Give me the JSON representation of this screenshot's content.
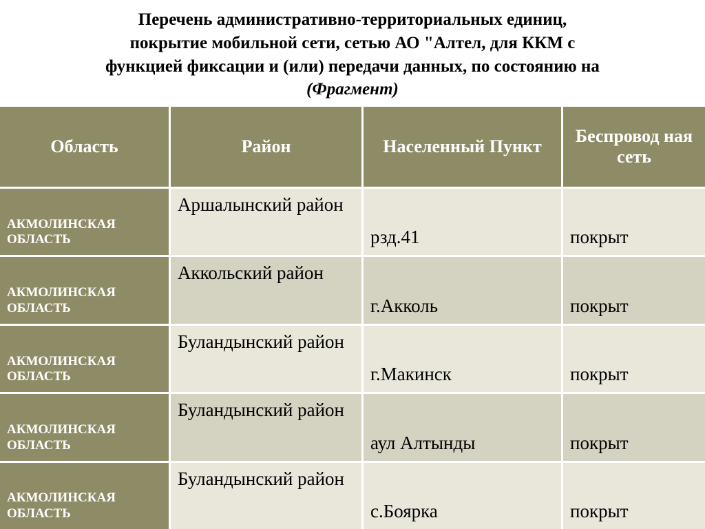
{
  "title_l1": "Перечень административно-территориальных единиц,",
  "title_l2": "покрытие мобильной сети, сетью АО \"Алтел, для ККМ с",
  "title_l3": "функцией фиксации и (или) передачи данных, по состоянию на",
  "title_fragment": "(Фрагмент)",
  "headers": {
    "c0": "Область",
    "c1": "Район",
    "c2": "Населенный Пункт",
    "c3": "Беспровод ная сеть"
  },
  "rows": [
    {
      "region": "АКМОЛИНСКАЯ ОБЛАСТЬ",
      "district": "Аршалынский район",
      "locality": "рзд.41",
      "coverage": "покрыт"
    },
    {
      "region": "АКМОЛИНСКАЯ ОБЛАСТЬ",
      "district": "Аккольский район",
      "locality": "г.Акколь",
      "coverage": "покрыт"
    },
    {
      "region": "АКМОЛИНСКАЯ ОБЛАСТЬ",
      "district": "Буландынский район",
      "locality": "г.Макинск",
      "coverage": "покрыт"
    },
    {
      "region": "АКМОЛИНСКАЯ ОБЛАСТЬ",
      "district": "Буландынский район",
      "locality": "аул Алтынды",
      "coverage": "покрыт"
    },
    {
      "region": "АКМОЛИНСКАЯ ОБЛАСТЬ",
      "district": "Буландынский район",
      "locality": "с.Боярка",
      "coverage": "покрыт"
    }
  ],
  "colors": {
    "header_bg": "#8e8c66",
    "region_bg": "#8e8c66",
    "alt_bg_light": "#e8e7da",
    "alt_bg_dark": "#d4d2c0",
    "white": "#ffffff"
  }
}
